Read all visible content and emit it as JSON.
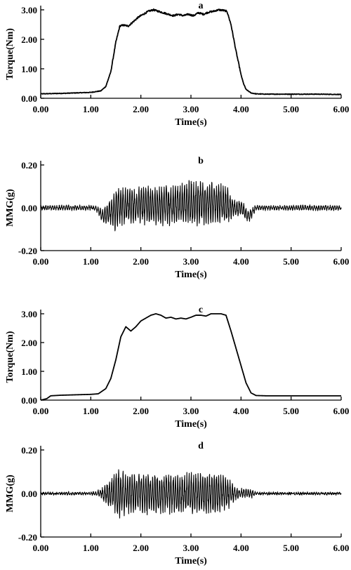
{
  "chart_data": [
    {
      "type": "line",
      "title": "a",
      "xlabel": "Time(s)",
      "ylabel": "Torque(Nm)",
      "xlim": [
        0,
        6
      ],
      "ylim": [
        0,
        3.0
      ],
      "xticks": [
        "0.00",
        "1.00",
        "2.00",
        "3.00",
        "4.00",
        "5.00",
        "6.00"
      ],
      "yticks": [
        "0.00",
        "1.00",
        "2.00",
        "3.00"
      ],
      "x": [
        0.0,
        0.5,
        1.0,
        1.2,
        1.3,
        1.4,
        1.5,
        1.58,
        1.65,
        1.75,
        1.85,
        1.95,
        2.05,
        2.15,
        2.25,
        2.35,
        2.45,
        2.55,
        2.65,
        2.75,
        2.85,
        2.95,
        3.05,
        3.15,
        3.25,
        3.35,
        3.45,
        3.55,
        3.65,
        3.72,
        3.8,
        3.9,
        4.0,
        4.05,
        4.1,
        4.2,
        4.3,
        4.5,
        5.0,
        5.5,
        6.0
      ],
      "y": [
        0.15,
        0.17,
        0.2,
        0.25,
        0.4,
        0.9,
        1.9,
        2.45,
        2.48,
        2.45,
        2.6,
        2.75,
        2.85,
        2.95,
        3.0,
        2.95,
        2.9,
        2.85,
        2.8,
        2.85,
        2.8,
        2.85,
        2.8,
        2.9,
        2.85,
        2.92,
        2.95,
        3.0,
        2.98,
        2.95,
        2.5,
        1.6,
        0.8,
        0.5,
        0.3,
        0.18,
        0.15,
        0.14,
        0.14,
        0.14,
        0.13
      ],
      "noise": 0.02
    },
    {
      "type": "line",
      "title": "b",
      "xlabel": "Time(s)",
      "ylabel": "MMG(g)",
      "xlim": [
        0,
        6
      ],
      "ylim": [
        -0.2,
        0.2
      ],
      "xticks": [
        "0.00",
        "1.00",
        "2.00",
        "3.00",
        "4.00",
        "5.00",
        "6.00"
      ],
      "yticks": [
        "0.20",
        "0.00",
        "-0.20"
      ],
      "envelope_t": [
        0.0,
        1.1,
        1.25,
        1.4,
        1.5,
        1.7,
        2.5,
        3.0,
        3.5,
        3.75,
        3.85,
        4.0,
        4.15,
        4.3,
        6.0
      ],
      "envelope_a": [
        0.01,
        0.01,
        0.03,
        0.06,
        0.1,
        0.08,
        0.09,
        0.1,
        0.09,
        0.08,
        0.04,
        0.03,
        0.03,
        0.01,
        0.01
      ],
      "envelope_offset": [
        0.0,
        0.0,
        -0.04,
        -0.02,
        0.0,
        0.01,
        0.01,
        0.02,
        0.02,
        0.01,
        0.0,
        0.0,
        -0.04,
        0.0,
        0.0
      ],
      "frequency_hz": 22
    },
    {
      "type": "line",
      "title": "c",
      "xlabel": "Time(s)",
      "ylabel": "Torque(Nm)",
      "xlim": [
        0,
        6
      ],
      "ylim": [
        0,
        3.0
      ],
      "xticks": [
        "0.00",
        "1.00",
        "2.00",
        "3.00",
        "4.00",
        "5.00",
        "6.00"
      ],
      "yticks": [
        "0.00",
        "1.00",
        "2.00",
        "3.00"
      ],
      "x": [
        0.0,
        0.12,
        0.2,
        0.4,
        0.6,
        0.8,
        1.0,
        1.15,
        1.3,
        1.4,
        1.5,
        1.6,
        1.7,
        1.8,
        1.9,
        2.0,
        2.1,
        2.2,
        2.3,
        2.4,
        2.5,
        2.6,
        2.7,
        2.8,
        2.9,
        3.0,
        3.1,
        3.2,
        3.3,
        3.4,
        3.5,
        3.6,
        3.7,
        3.8,
        3.9,
        4.0,
        4.1,
        4.2,
        4.3,
        4.5,
        5.0,
        5.5,
        6.0
      ],
      "y": [
        0.0,
        0.05,
        0.15,
        0.17,
        0.18,
        0.19,
        0.2,
        0.22,
        0.4,
        0.75,
        1.4,
        2.2,
        2.55,
        2.4,
        2.55,
        2.75,
        2.85,
        2.95,
        3.0,
        2.95,
        2.85,
        2.88,
        2.82,
        2.85,
        2.82,
        2.88,
        2.95,
        2.95,
        2.92,
        3.0,
        3.0,
        3.0,
        2.95,
        2.4,
        1.8,
        1.2,
        0.6,
        0.25,
        0.16,
        0.15,
        0.15,
        0.15,
        0.15
      ],
      "noise": 0.0
    },
    {
      "type": "line",
      "title": "d",
      "xlabel": "Time(s)",
      "ylabel": "MMG(g)",
      "xlim": [
        0,
        6
      ],
      "ylim": [
        -0.2,
        0.2
      ],
      "xticks": [
        "0.00",
        "1.00",
        "2.00",
        "3.00",
        "4.00",
        "5.00",
        "6.00"
      ],
      "yticks": [
        "0.20",
        "0.00",
        "-0.20"
      ],
      "envelope_t": [
        0.0,
        1.1,
        1.25,
        1.4,
        1.55,
        1.7,
        2.5,
        3.0,
        3.5,
        3.75,
        3.85,
        4.0,
        4.2,
        4.3,
        6.0
      ],
      "envelope_a": [
        0.004,
        0.006,
        0.03,
        0.07,
        0.11,
        0.09,
        0.09,
        0.09,
        0.09,
        0.07,
        0.04,
        0.02,
        0.02,
        0.004,
        0.004
      ],
      "envelope_offset": [
        0,
        0,
        0,
        0,
        0,
        0,
        0,
        0,
        0,
        0,
        0,
        0,
        0,
        0,
        0
      ],
      "frequency_hz": 22
    }
  ]
}
